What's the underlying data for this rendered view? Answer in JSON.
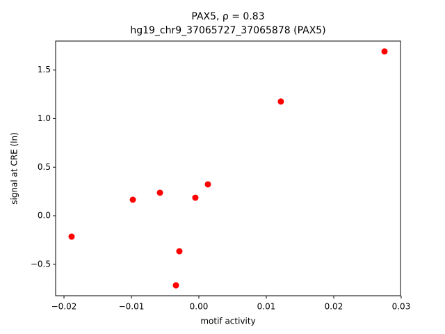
{
  "chart_data": {
    "type": "scatter",
    "title": "PAX5, ρ = 0.83",
    "subtitle": "hg19_chr9_37065727_37065878 (PAX5)",
    "x_label": "motif activity",
    "y_label": "signal at CRE (ln)",
    "color": "#ff0000",
    "x": [
      0.02753,
      0.01216,
      0.00134,
      -0.00052,
      -0.00577,
      -0.00979,
      -0.01887,
      -0.00289,
      -0.0034
    ],
    "values": [
      1.692,
      1.176,
      0.323,
      0.186,
      0.237,
      0.165,
      -0.215,
      -0.366,
      -0.717
    ],
    "xlim": [
      -0.02124,
      0.0299
    ],
    "ylim": [
      -0.824,
      1.799
    ],
    "xticks": [
      {
        "value": -0.02,
        "label": "−0.02"
      },
      {
        "value": -0.01,
        "label": "−0.01"
      },
      {
        "value": 0,
        "label": "0.00"
      },
      0.01,
      0.02,
      0.03
    ],
    "yticks": [
      {
        "value": -0.5,
        "label": "−0.5"
      },
      {
        "value": 0,
        "label": "0.0"
      },
      0.5,
      {
        "value": 1,
        "label": "1.0"
      },
      1.5
    ],
    "grid": false
  }
}
